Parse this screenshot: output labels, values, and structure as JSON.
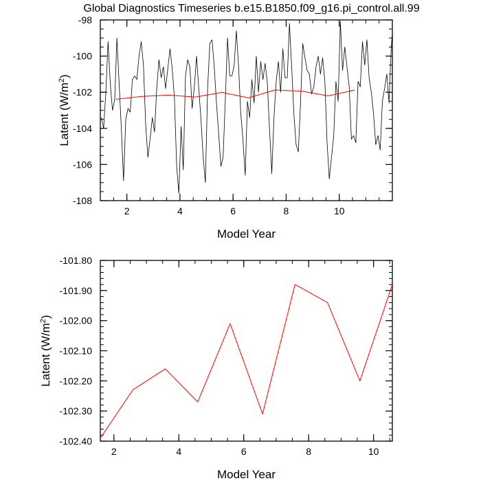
{
  "title": "Global Diagnostics Timeseries b.e15.B1850.f09_g16.pi_control.all.99",
  "colors": {
    "monthly": "#000000",
    "annual": "#ff0000",
    "axis": "#000000",
    "background": "#ffffff"
  },
  "chart_data": [
    {
      "type": "line",
      "name": "monthly-and-annual",
      "xlabel": "Model Year",
      "ylabel_main": "Latent (W/m",
      "ylabel_sup": "2",
      "ylabel_end": ")",
      "xlim": [
        1.0,
        12.0
      ],
      "ylim": [
        -108,
        -98
      ],
      "xticks": [
        2,
        4,
        6,
        8,
        10
      ],
      "xtick_labels": [
        "2",
        "4",
        "6",
        "8",
        "10"
      ],
      "yticks": [
        -108,
        -106,
        -104,
        -102,
        -100,
        -98
      ],
      "ytick_labels": [
        "-108",
        "-106",
        "-104",
        "-102",
        "-100",
        "-98"
      ],
      "series": [
        {
          "name": "monthly",
          "color": "#000000",
          "x_start": 1.0417,
          "x_step": 0.08333,
          "values": [
            -103.4,
            -104.0,
            -102.0,
            -99.2,
            -101.5,
            -103.0,
            -102.4,
            -99.0,
            -101.5,
            -104.0,
            -106.9,
            -103.5,
            -102.9,
            -103.1,
            -101.3,
            -101.1,
            -101.3,
            -100.0,
            -99.2,
            -100.5,
            -103.8,
            -105.6,
            -104.6,
            -103.4,
            -104.2,
            -101.8,
            -100.2,
            -101.2,
            -100.6,
            -101.8,
            -100.7,
            -99.6,
            -100.7,
            -102.3,
            -106.1,
            -107.6,
            -103.9,
            -106.3,
            -101.1,
            -100.2,
            -100.6,
            -102.9,
            -101.7,
            -100.0,
            -101.8,
            -103.5,
            -105.6,
            -107.0,
            -101.8,
            -99.3,
            -99.1,
            -100.6,
            -102.6,
            -104.3,
            -106.1,
            -105.6,
            -102.4,
            -99.0,
            -101.1,
            -101.1,
            -100.5,
            -98.6,
            -100.6,
            -103.2,
            -104.7,
            -106.6,
            -102.5,
            -103.4,
            -101.3,
            -102.6,
            -100.0,
            -102.0,
            -100.3,
            -101.3,
            -100.4,
            -101.5,
            -104.1,
            -106.5,
            -103.4,
            -101.4,
            -100.3,
            -102.0,
            -99.6,
            -101.2,
            -101.2,
            -98.2,
            -100.6,
            -103.2,
            -104.9,
            -105.3,
            -102.6,
            -99.3,
            -100.1,
            -100.8,
            -101.0,
            -102.1,
            -101.7,
            -100.6,
            -100.0,
            -101.0,
            -100.1,
            -101.4,
            -104.8,
            -106.8,
            -105.6,
            -104.4,
            -101.4,
            -102.5,
            -98.1,
            -100.8,
            -99.5,
            -100.6,
            -101.7,
            -104.6,
            -104.4,
            -104.8,
            -101.4,
            -101.7,
            -99.2,
            -100.5,
            -99.1,
            -101.2,
            -102.0,
            -103.2,
            -104.9,
            -104.4,
            -105.2,
            -102.5,
            -101.8,
            -101.0,
            -102.6,
            -99.5,
            -98.0,
            -99.4,
            -103.0,
            -104.9,
            -104.8,
            -102.0,
            -101.3,
            -101.6,
            -98.9,
            -98.9,
            -102.5,
            -105.1
          ]
        },
        {
          "name": "annual",
          "color": "#ff0000",
          "x": [
            1.58,
            2.58,
            3.58,
            4.58,
            5.58,
            6.58,
            7.58,
            8.58,
            9.58,
            10.58
          ],
          "values": [
            -102.39,
            -102.23,
            -102.16,
            -102.27,
            -102.01,
            -102.31,
            -101.88,
            -101.94,
            -102.2,
            -101.88
          ]
        }
      ]
    },
    {
      "type": "line",
      "name": "annual-zoom",
      "xlabel": "Model Year",
      "ylabel_main": "Latent (W/m",
      "ylabel_sup": "2",
      "ylabel_end": ")",
      "xlim": [
        1.58,
        10.58
      ],
      "ylim": [
        -102.4,
        -101.8
      ],
      "xticks": [
        2,
        4,
        6,
        8,
        10
      ],
      "xtick_labels": [
        "2",
        "4",
        "6",
        "8",
        "10"
      ],
      "yticks": [
        -102.4,
        -102.3,
        -102.2,
        -102.1,
        -102.0,
        -101.9,
        -101.8
      ],
      "ytick_labels": [
        "-102.40",
        "-102.30",
        "-102.20",
        "-102.10",
        "-102.00",
        "-101.90",
        "-101.80"
      ],
      "series": [
        {
          "name": "annual",
          "color": "#ff0000",
          "x": [
            1.58,
            2.58,
            3.58,
            4.58,
            5.58,
            6.58,
            7.58,
            8.58,
            9.58,
            10.58
          ],
          "values": [
            -102.39,
            -102.23,
            -102.16,
            -102.27,
            -102.01,
            -102.31,
            -101.88,
            -101.94,
            -102.2,
            -101.88
          ]
        }
      ]
    }
  ]
}
